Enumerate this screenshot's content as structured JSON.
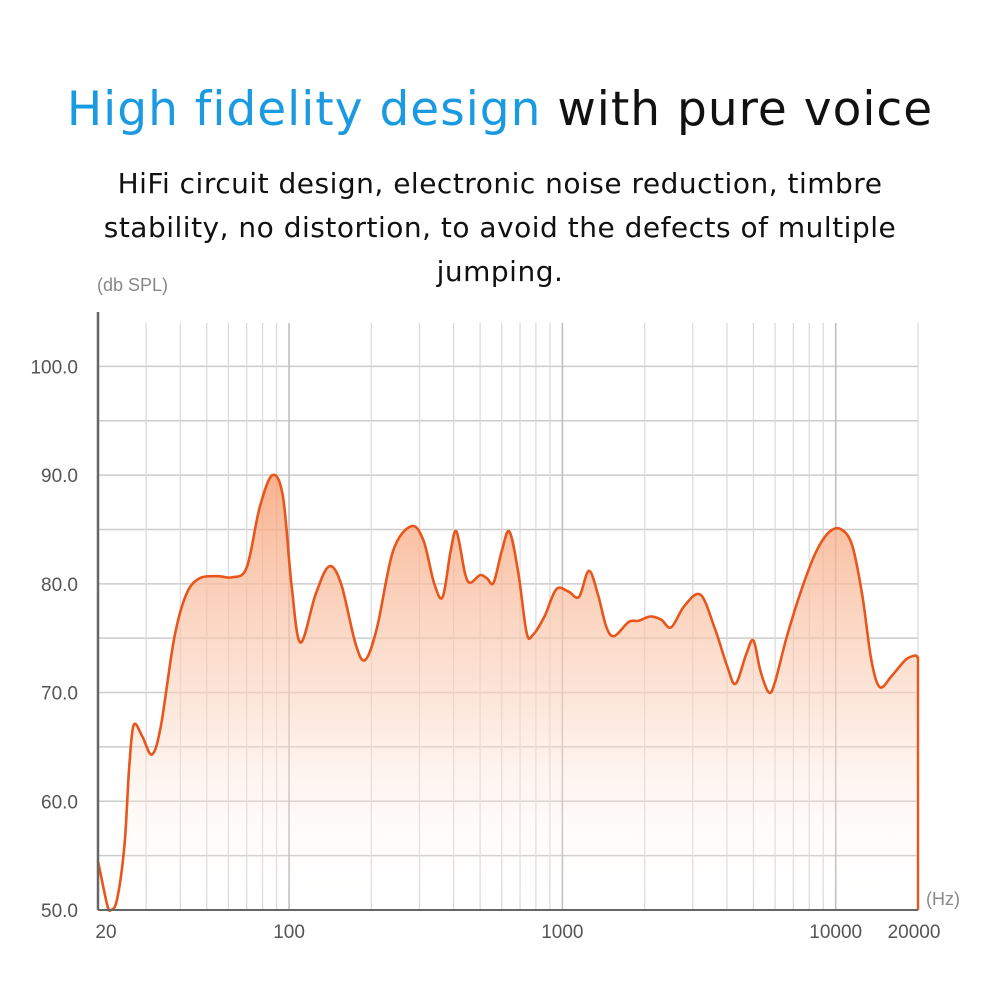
{
  "headline": {
    "accent_text": "High fidelity design",
    "rest_text": "with pure voice"
  },
  "subtitle": "HiFi circuit design, electronic noise reduction, timbre stability, no distortion, to avoid the defects of multiple jumping.",
  "colors": {
    "accent": "#1a9ae0",
    "curve": "#e8561b",
    "fill_top": "#f7a47a",
    "grid": "#cccccc",
    "axis": "#666666"
  },
  "chart_data": {
    "type": "area",
    "ylabel": "(db SPL)",
    "xlabel": "(Hz)",
    "x_scale": "log",
    "xlim": [
      20,
      20000
    ],
    "ylim": [
      50,
      105
    ],
    "grid": true,
    "y_ticks": [
      {
        "value": 50,
        "label": "50.0"
      },
      {
        "value": 60,
        "label": "60.0"
      },
      {
        "value": 70,
        "label": "70.0"
      },
      {
        "value": 80,
        "label": "80.0"
      },
      {
        "value": 90,
        "label": "90.0"
      },
      {
        "value": 100,
        "label": "100.0"
      }
    ],
    "x_ticks": [
      {
        "value": 20,
        "label": "20"
      },
      {
        "value": 100,
        "label": "100"
      },
      {
        "value": 1000,
        "label": "1000"
      },
      {
        "value": 10000,
        "label": "10000"
      },
      {
        "value": 20000,
        "label": "20000"
      }
    ],
    "series": [
      {
        "points": [
          [
            20,
            54.5
          ],
          [
            21.6,
            50.5
          ],
          [
            22.3,
            50
          ],
          [
            23.5,
            51
          ],
          [
            25,
            56
          ],
          [
            26,
            63
          ],
          [
            27,
            67
          ],
          [
            29,
            66
          ],
          [
            31.5,
            64.3
          ],
          [
            34,
            67
          ],
          [
            38,
            75
          ],
          [
            42,
            79
          ],
          [
            47,
            80.5
          ],
          [
            55,
            80.7
          ],
          [
            62,
            80.6
          ],
          [
            70,
            81.5
          ],
          [
            78,
            87
          ],
          [
            87,
            90
          ],
          [
            95,
            88
          ],
          [
            102,
            80
          ],
          [
            110,
            74.6
          ],
          [
            125,
            79
          ],
          [
            140,
            81.6
          ],
          [
            155,
            80
          ],
          [
            175,
            74.5
          ],
          [
            190,
            73
          ],
          [
            210,
            76
          ],
          [
            240,
            83
          ],
          [
            280,
            85.3
          ],
          [
            310,
            84
          ],
          [
            340,
            80
          ],
          [
            365,
            78.8
          ],
          [
            390,
            83
          ],
          [
            410,
            84.8
          ],
          [
            440,
            81
          ],
          [
            460,
            80.1
          ],
          [
            500,
            80.8
          ],
          [
            530,
            80.5
          ],
          [
            560,
            80.1
          ],
          [
            600,
            83
          ],
          [
            640,
            84.8
          ],
          [
            690,
            81
          ],
          [
            740,
            75.5
          ],
          [
            780,
            75.3
          ],
          [
            860,
            77
          ],
          [
            950,
            79.5
          ],
          [
            1050,
            79.3
          ],
          [
            1150,
            78.8
          ],
          [
            1250,
            81.2
          ],
          [
            1350,
            79
          ],
          [
            1450,
            76
          ],
          [
            1550,
            75.2
          ],
          [
            1750,
            76.5
          ],
          [
            1900,
            76.6
          ],
          [
            2100,
            77
          ],
          [
            2300,
            76.7
          ],
          [
            2500,
            76
          ],
          [
            2800,
            78
          ],
          [
            3200,
            79
          ],
          [
            3600,
            76
          ],
          [
            4000,
            72.5
          ],
          [
            4300,
            70.8
          ],
          [
            4700,
            73.5
          ],
          [
            5000,
            74.8
          ],
          [
            5300,
            72
          ],
          [
            5700,
            70
          ],
          [
            6000,
            71
          ],
          [
            6600,
            75
          ],
          [
            7500,
            79.5
          ],
          [
            8500,
            83
          ],
          [
            9500,
            84.8
          ],
          [
            10500,
            85
          ],
          [
            11500,
            83.5
          ],
          [
            12500,
            79
          ],
          [
            13500,
            73
          ],
          [
            14500,
            70.5
          ],
          [
            16000,
            71.5
          ],
          [
            18000,
            73
          ],
          [
            19500,
            73.4
          ],
          [
            20000,
            73.2
          ]
        ]
      }
    ]
  }
}
